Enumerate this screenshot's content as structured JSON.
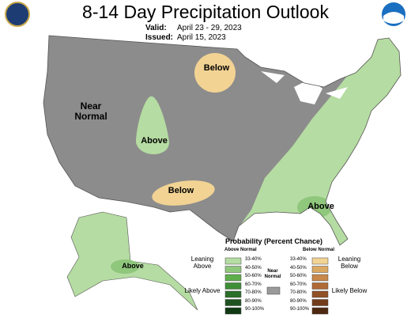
{
  "header": {
    "title": "8-14 Day Precipitation Outlook",
    "valid_label": "Valid:",
    "valid": "April 23 - 29, 2023",
    "issued_label": "Issued:",
    "issued": "April 15, 2023"
  },
  "map_labels": [
    "Below",
    "Near Normal",
    "Above",
    "Below",
    "Above",
    "Above"
  ],
  "legend": {
    "title": "Probability (Percent Chance)",
    "above_heading": "Above Normal",
    "below_heading": "Below Normal",
    "near_normal": "Near Normal",
    "near_color": "#9a9a9a",
    "leaning_above": "Leaning Above",
    "likely_above": "Likely Above",
    "leaning_below": "Leaning Below",
    "likely_below": "Likely Below",
    "above": [
      {
        "label": "33-40%",
        "color": "#b5dca2"
      },
      {
        "label": "40-50%",
        "color": "#8fc77c"
      },
      {
        "label": "50-60%",
        "color": "#5fae4c"
      },
      {
        "label": "60-70%",
        "color": "#3f8f36"
      },
      {
        "label": "70-80%",
        "color": "#2b6f29"
      },
      {
        "label": "80-90%",
        "color": "#1e5321"
      },
      {
        "label": "90-100%",
        "color": "#103913"
      }
    ],
    "below": [
      {
        "label": "33-40%",
        "color": "#f2d393"
      },
      {
        "label": "40-50%",
        "color": "#dba862"
      },
      {
        "label": "50-60%",
        "color": "#c8884b"
      },
      {
        "label": "60-70%",
        "color": "#af6a36"
      },
      {
        "label": "70-80%",
        "color": "#915127"
      },
      {
        "label": "80-90%",
        "color": "#723c1b"
      },
      {
        "label": "90-100%",
        "color": "#4f2811"
      }
    ]
  }
}
